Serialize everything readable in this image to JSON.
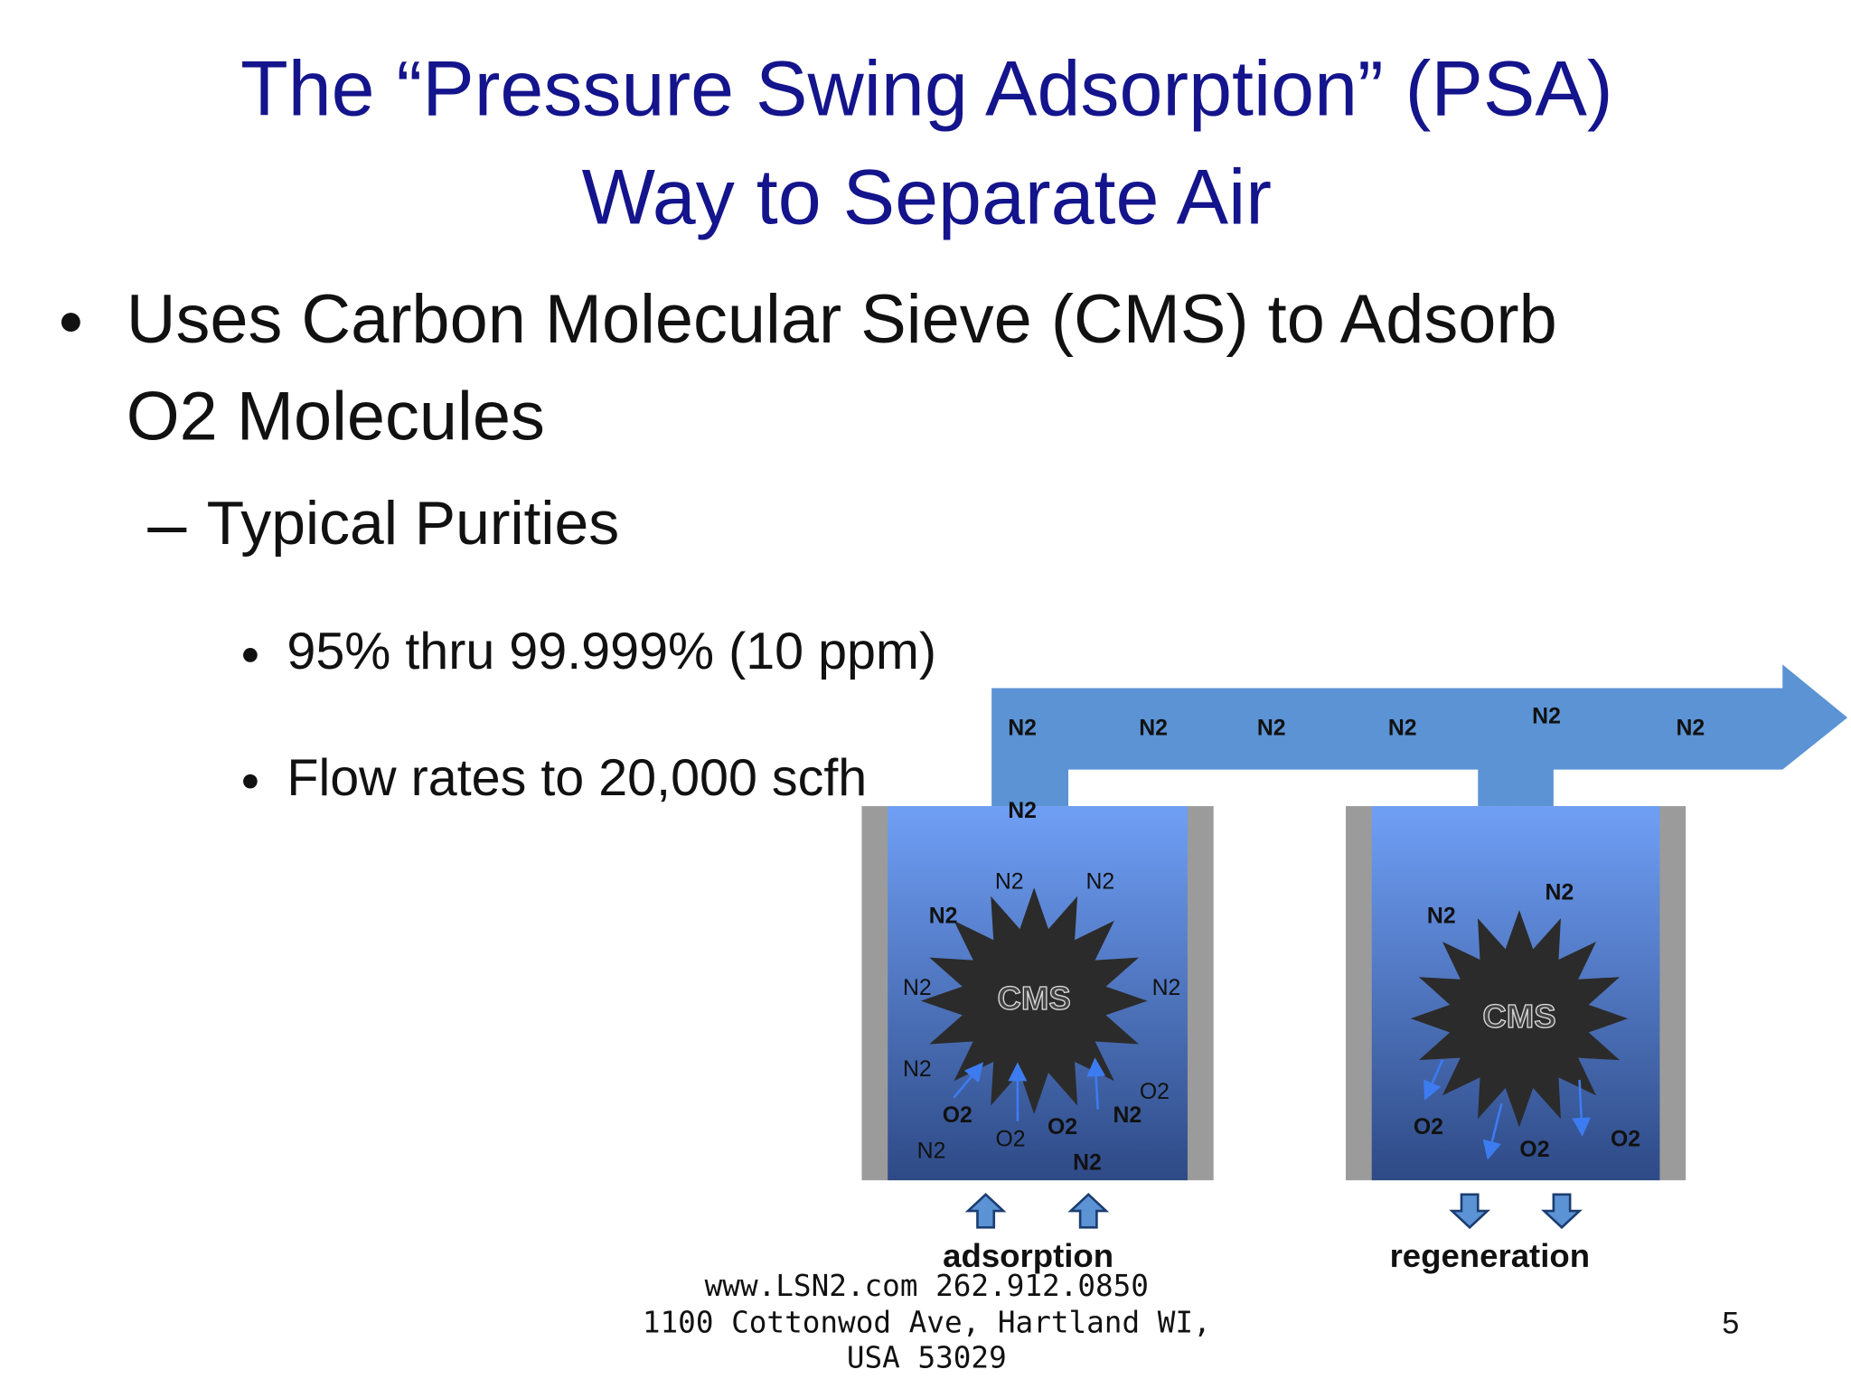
{
  "slide": {
    "title": [
      "The “Pressure Swing Adsorption” (PSA)",
      "Way to Separate Air"
    ],
    "bullet": {
      "lines": [
        "Uses Carbon Molecular Sieve (CMS) to Adsorb",
        "O2 Molecules"
      ]
    },
    "sub_bullet": "Typical Purities",
    "sub_sub_bullets": [
      "95% thru 99.999% (10 ppm)",
      "Flow rates to 20,000 scfh"
    ],
    "diagram": {
      "pipe_labels": [
        "N2",
        "N2",
        "N2",
        "N2",
        "N2",
        "N2",
        "N2"
      ],
      "left_vessel": {
        "cms": "CMS",
        "labels": [
          "N2",
          "N2",
          "N2",
          "N2",
          "N2",
          "N2",
          "O2",
          "O2",
          "O2",
          "O2",
          "N2",
          "N2",
          "N2"
        ],
        "caption": "adsorption"
      },
      "right_vessel": {
        "cms": "CMS",
        "labels": [
          "N2",
          "N2",
          "O2",
          "O2",
          "O2"
        ],
        "caption": "regeneration"
      }
    },
    "footer": [
      "www.LSN2.com  262.912.0850",
      "1100 Cottonwod Ave, Hartland WI,",
      "USA 53029"
    ],
    "page_number": "5"
  }
}
